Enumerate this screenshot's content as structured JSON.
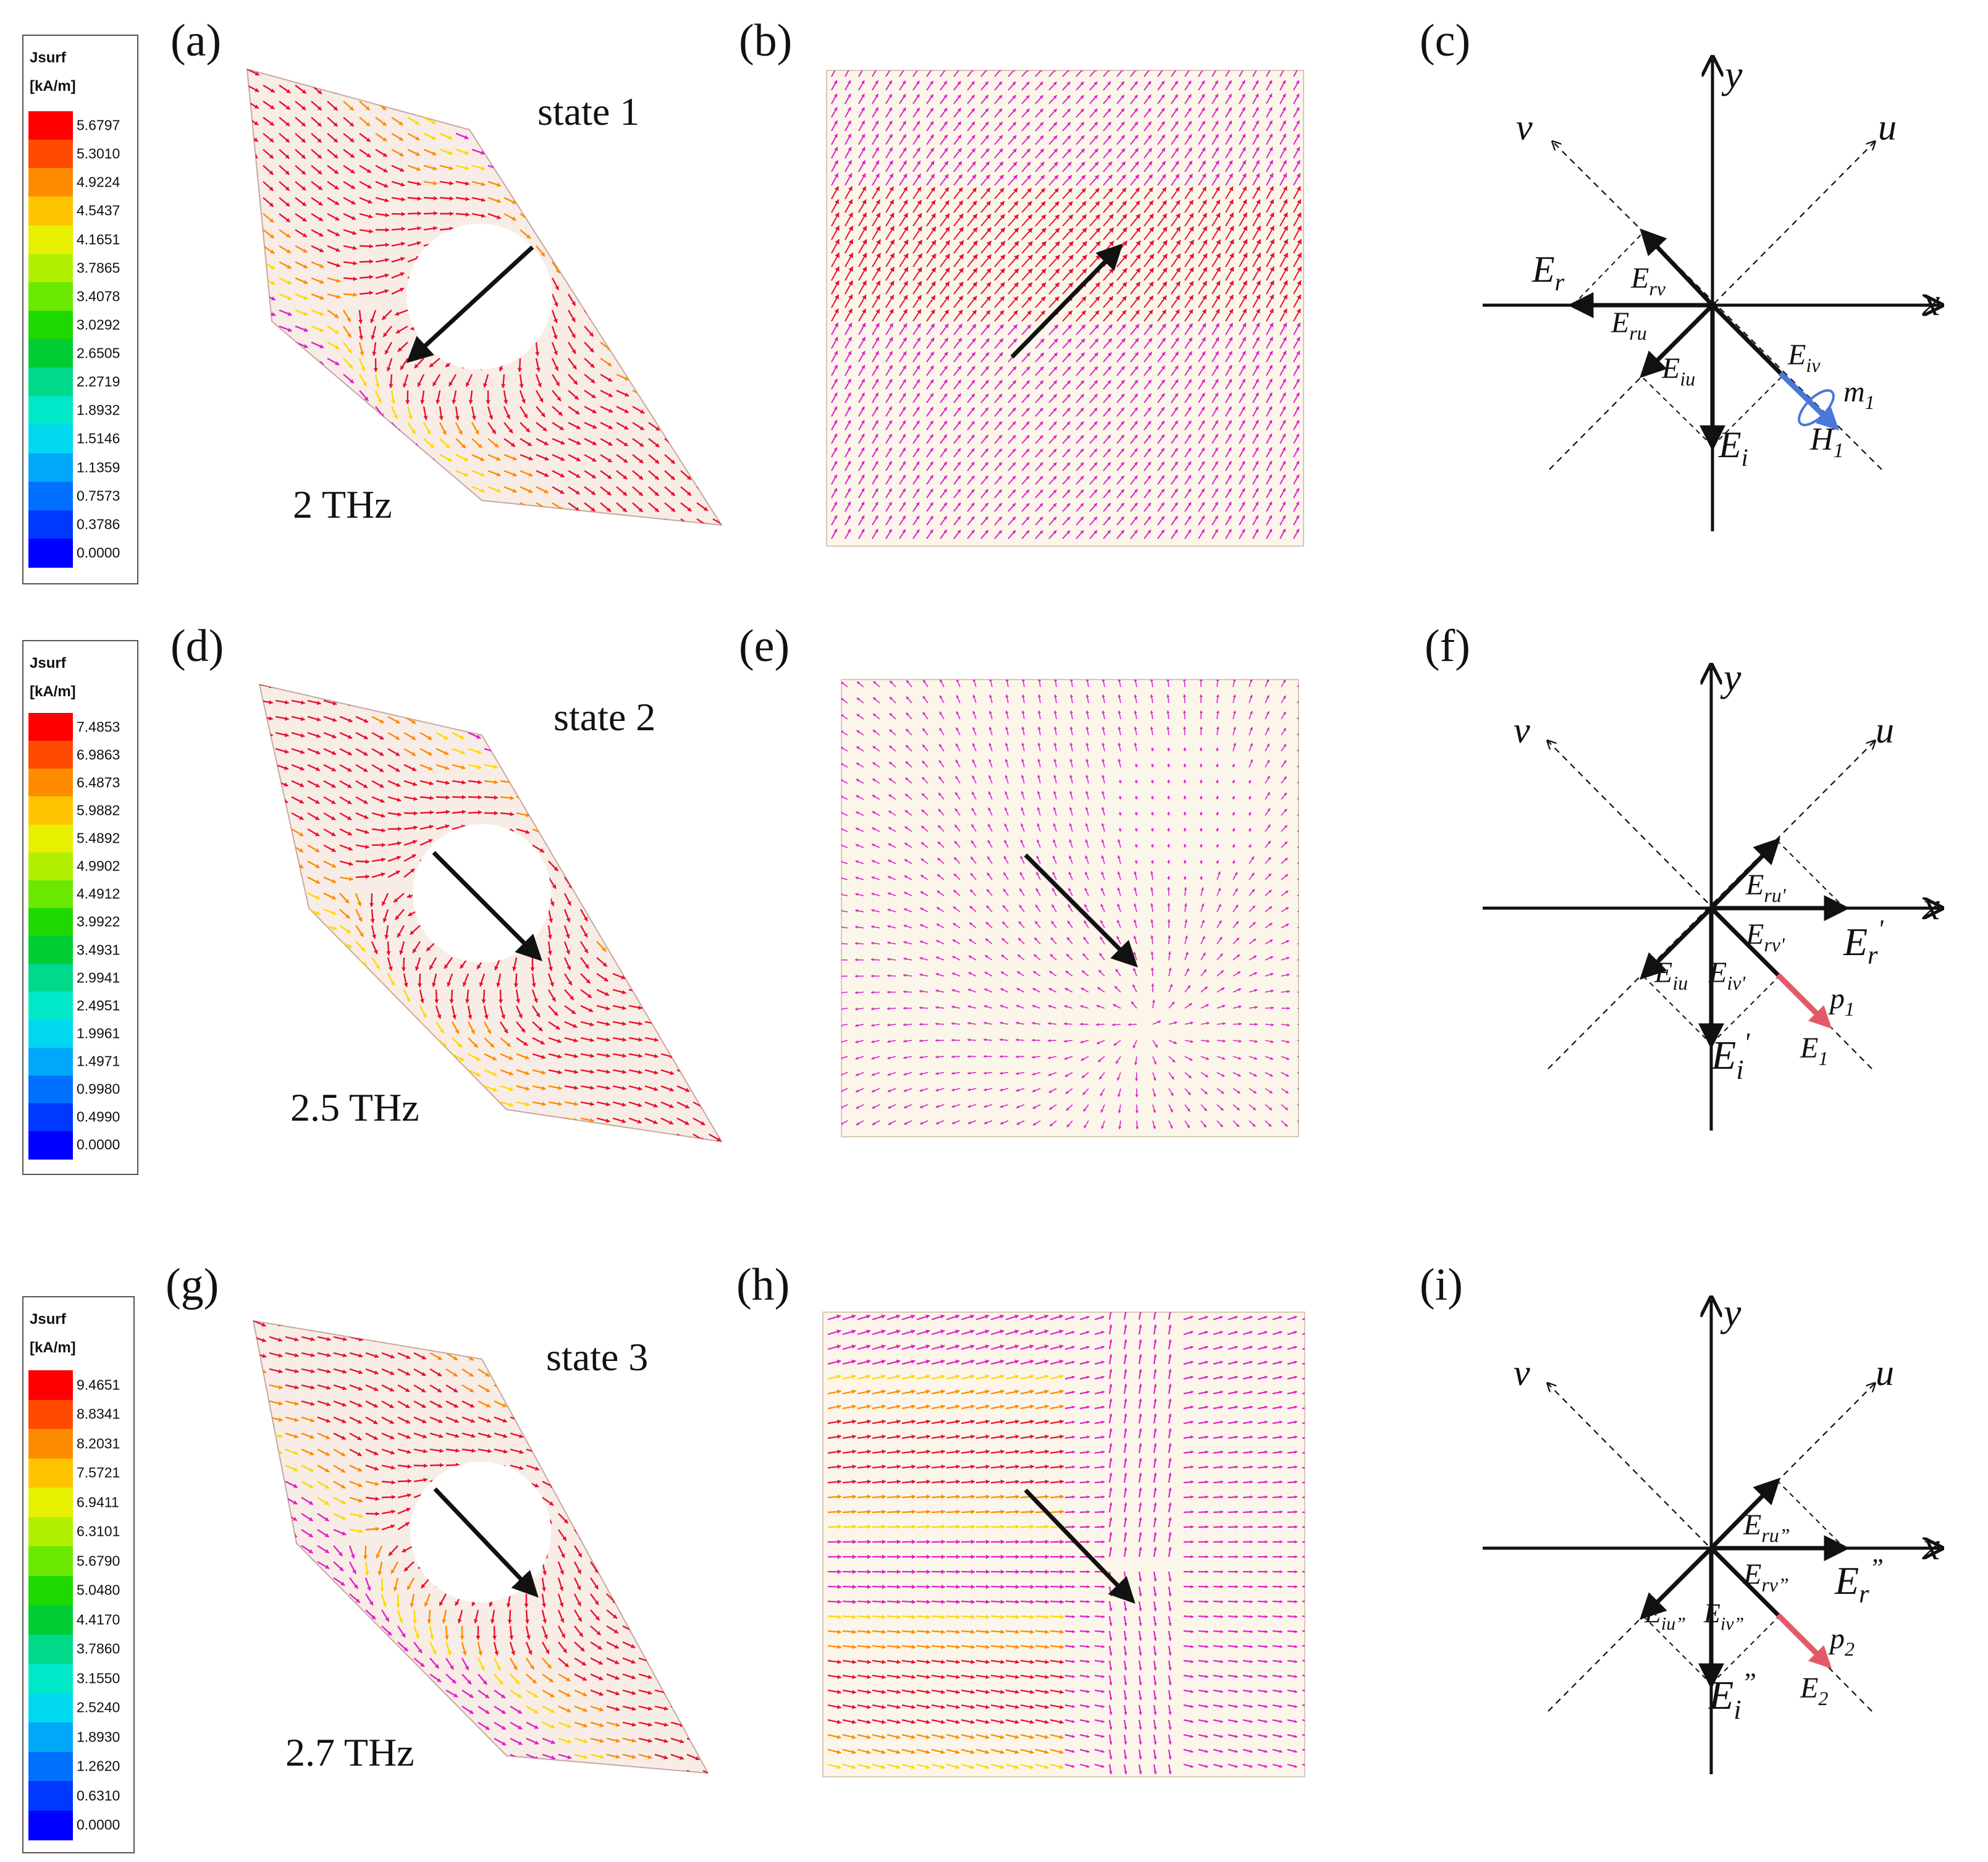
{
  "panel_labels": {
    "a": "(a)",
    "b": "(b)",
    "c": "(c)",
    "d": "(d)",
    "e": "(e)",
    "f": "(f)",
    "g": "(g)",
    "h": "(h)",
    "i": "(i)"
  },
  "rows": [
    {
      "state": "state 1",
      "frequency": "2 THz",
      "colorbar": {
        "title": "Jsurf",
        "unit": "[kA/m]",
        "ticks": [
          "5.6797",
          "5.3010",
          "4.9224",
          "4.5437",
          "4.1651",
          "3.7865",
          "3.4078",
          "3.0292",
          "2.6505",
          "2.2719",
          "1.8932",
          "1.5146",
          "1.1359",
          "0.7573",
          "0.3786",
          "0.0000"
        ]
      }
    },
    {
      "state": "state 2",
      "frequency": "2.5 THz",
      "colorbar": {
        "title": "Jsurf",
        "unit": "[kA/m]",
        "ticks": [
          "7.4853",
          "6.9863",
          "6.4873",
          "5.9882",
          "5.4892",
          "4.9902",
          "4.4912",
          "3.9922",
          "3.4931",
          "2.9941",
          "2.4951",
          "1.9961",
          "1.4971",
          "0.9980",
          "0.4990",
          "0.0000"
        ]
      }
    },
    {
      "state": "state 3",
      "frequency": "2.7 THz",
      "colorbar": {
        "title": "Jsurf",
        "unit": "[kA/m]",
        "ticks": [
          "9.4651",
          "8.8341",
          "8.2031",
          "7.5721",
          "6.9411",
          "6.3101",
          "5.6790",
          "5.0480",
          "4.4170",
          "3.7860",
          "3.1550",
          "2.5240",
          "1.8930",
          "1.2620",
          "0.6310",
          "0.0000"
        ]
      }
    }
  ],
  "colorbar_colors": [
    "#ff0000",
    "#ff4a00",
    "#ff8c00",
    "#ffc400",
    "#e6f000",
    "#b0f000",
    "#6ae800",
    "#1fd800",
    "#00cc33",
    "#00d98a",
    "#00e8c8",
    "#00d8f0",
    "#00a8f8",
    "#0070ff",
    "#0038ff",
    "#0000ff"
  ],
  "axes": {
    "x": "x",
    "y": "y",
    "u": "u",
    "v": "v"
  },
  "diagram_c": {
    "Er": {
      "main": "E",
      "sub": "r"
    },
    "Erv": {
      "main": "E",
      "sub": "rv"
    },
    "Eru": {
      "main": "E",
      "sub": "ru"
    },
    "Eiu": {
      "main": "E",
      "sub": "iu"
    },
    "Eiv": {
      "main": "E",
      "sub": "iv"
    },
    "Ei": {
      "main": "E",
      "sub": "i"
    },
    "m": {
      "main": "m",
      "sub": "1"
    },
    "H": {
      "main": "H",
      "sub": "1"
    }
  },
  "diagram_f": {
    "Eru": {
      "main": "E",
      "sub": "ru'"
    },
    "Er": {
      "main": "E",
      "sub": "r",
      "sup": "'"
    },
    "Erv": {
      "main": "E",
      "sub": "rv'"
    },
    "Eiu": {
      "main": "E",
      "sub": "iu"
    },
    "Eiv": {
      "main": "E",
      "sub": "iv'"
    },
    "Ei": {
      "main": "E",
      "sub": "i",
      "sup": "'"
    },
    "p": {
      "main": "p",
      "sub": "1"
    },
    "E": {
      "main": "E",
      "sub": "1"
    }
  },
  "diagram_i": {
    "Eru": {
      "main": "E",
      "sub": "ru”"
    },
    "Er": {
      "main": "E",
      "sub": "r",
      "sup": "”"
    },
    "Erv": {
      "main": "E",
      "sub": "rv”"
    },
    "Eiu": {
      "main": "E",
      "sub": "iu”"
    },
    "Eiv": {
      "main": "E",
      "sub": "iv”"
    },
    "Ei": {
      "main": "E",
      "sub": "i",
      "sup": "”"
    },
    "p": {
      "main": "p",
      "sub": "2"
    },
    "E": {
      "main": "E",
      "sub": "2"
    }
  },
  "colors": {
    "magenta": "#e020c8",
    "red": "#e81030",
    "orange": "#ff8a00",
    "yellow": "#ffd800",
    "blue_arrow": "#4a78d8",
    "red_arrow": "#e25a6a",
    "panel_bg": "#fbf5ea"
  }
}
